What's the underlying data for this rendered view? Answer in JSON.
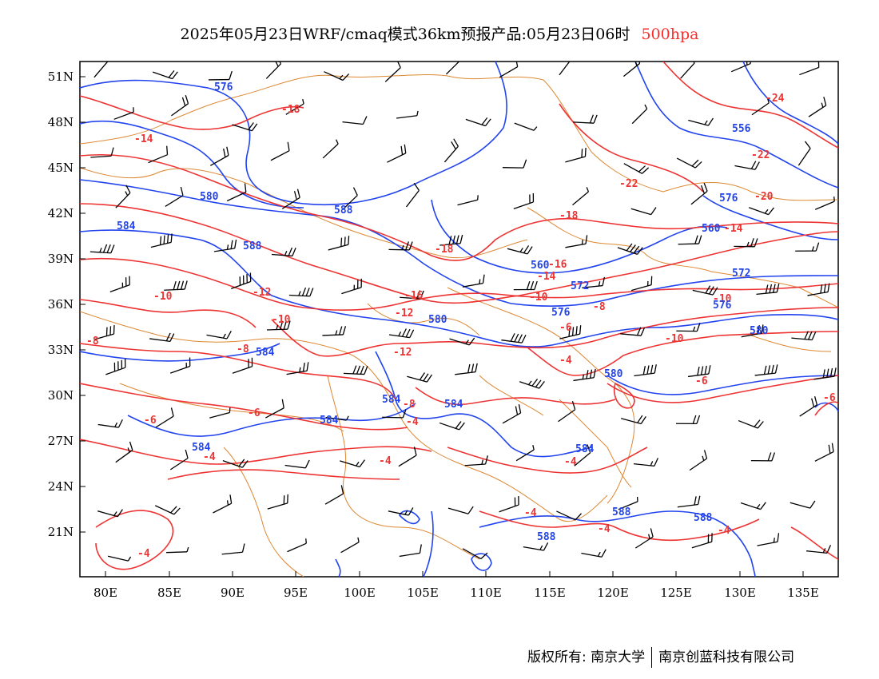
{
  "title": {
    "main": "2025年05月23日WRF/cmaq模式36km预报产品:05月23日06时",
    "level": "500hpa"
  },
  "axes": {
    "lon_ticks": [
      "80E",
      "85E",
      "90E",
      "95E",
      "100E",
      "105E",
      "110E",
      "115E",
      "120E",
      "125E",
      "130E",
      "135E"
    ],
    "lat_ticks": [
      "51N",
      "48N",
      "45N",
      "42N",
      "39N",
      "36N",
      "33N",
      "30N",
      "27N",
      "24N",
      "21N"
    ]
  },
  "contour_labels": {
    "temperature": [
      "-24",
      "-22",
      "-22",
      "-20",
      "-18",
      "-18",
      "-18",
      "-16",
      "-16",
      "-14",
      "-14",
      "-14",
      "-12",
      "-12",
      "-12",
      "-10",
      "-10",
      "-10",
      "-10",
      "-10",
      "-8",
      "-8",
      "-8",
      "-8",
      "-6",
      "-6",
      "-6",
      "-6",
      "-6",
      "-4",
      "-4",
      "-4",
      "-4",
      "-4",
      "-4",
      "-4",
      "-4",
      "-4"
    ],
    "height": [
      "576",
      "556",
      "580",
      "588",
      "584",
      "576",
      "560",
      "560",
      "572",
      "576",
      "572",
      "576",
      "580",
      "580",
      "584",
      "584",
      "584",
      "588",
      "584",
      "584",
      "584",
      "580",
      "588",
      "588",
      "588"
    ]
  },
  "colors": {
    "temperature": "#ee3333",
    "height": "#2244ee",
    "boundaries": "#dd8833",
    "wind_barbs": "#000000"
  },
  "footer": {
    "copyright_label": "版权所有: 南京大学",
    "company": "南京创蓝科技有限公司"
  }
}
